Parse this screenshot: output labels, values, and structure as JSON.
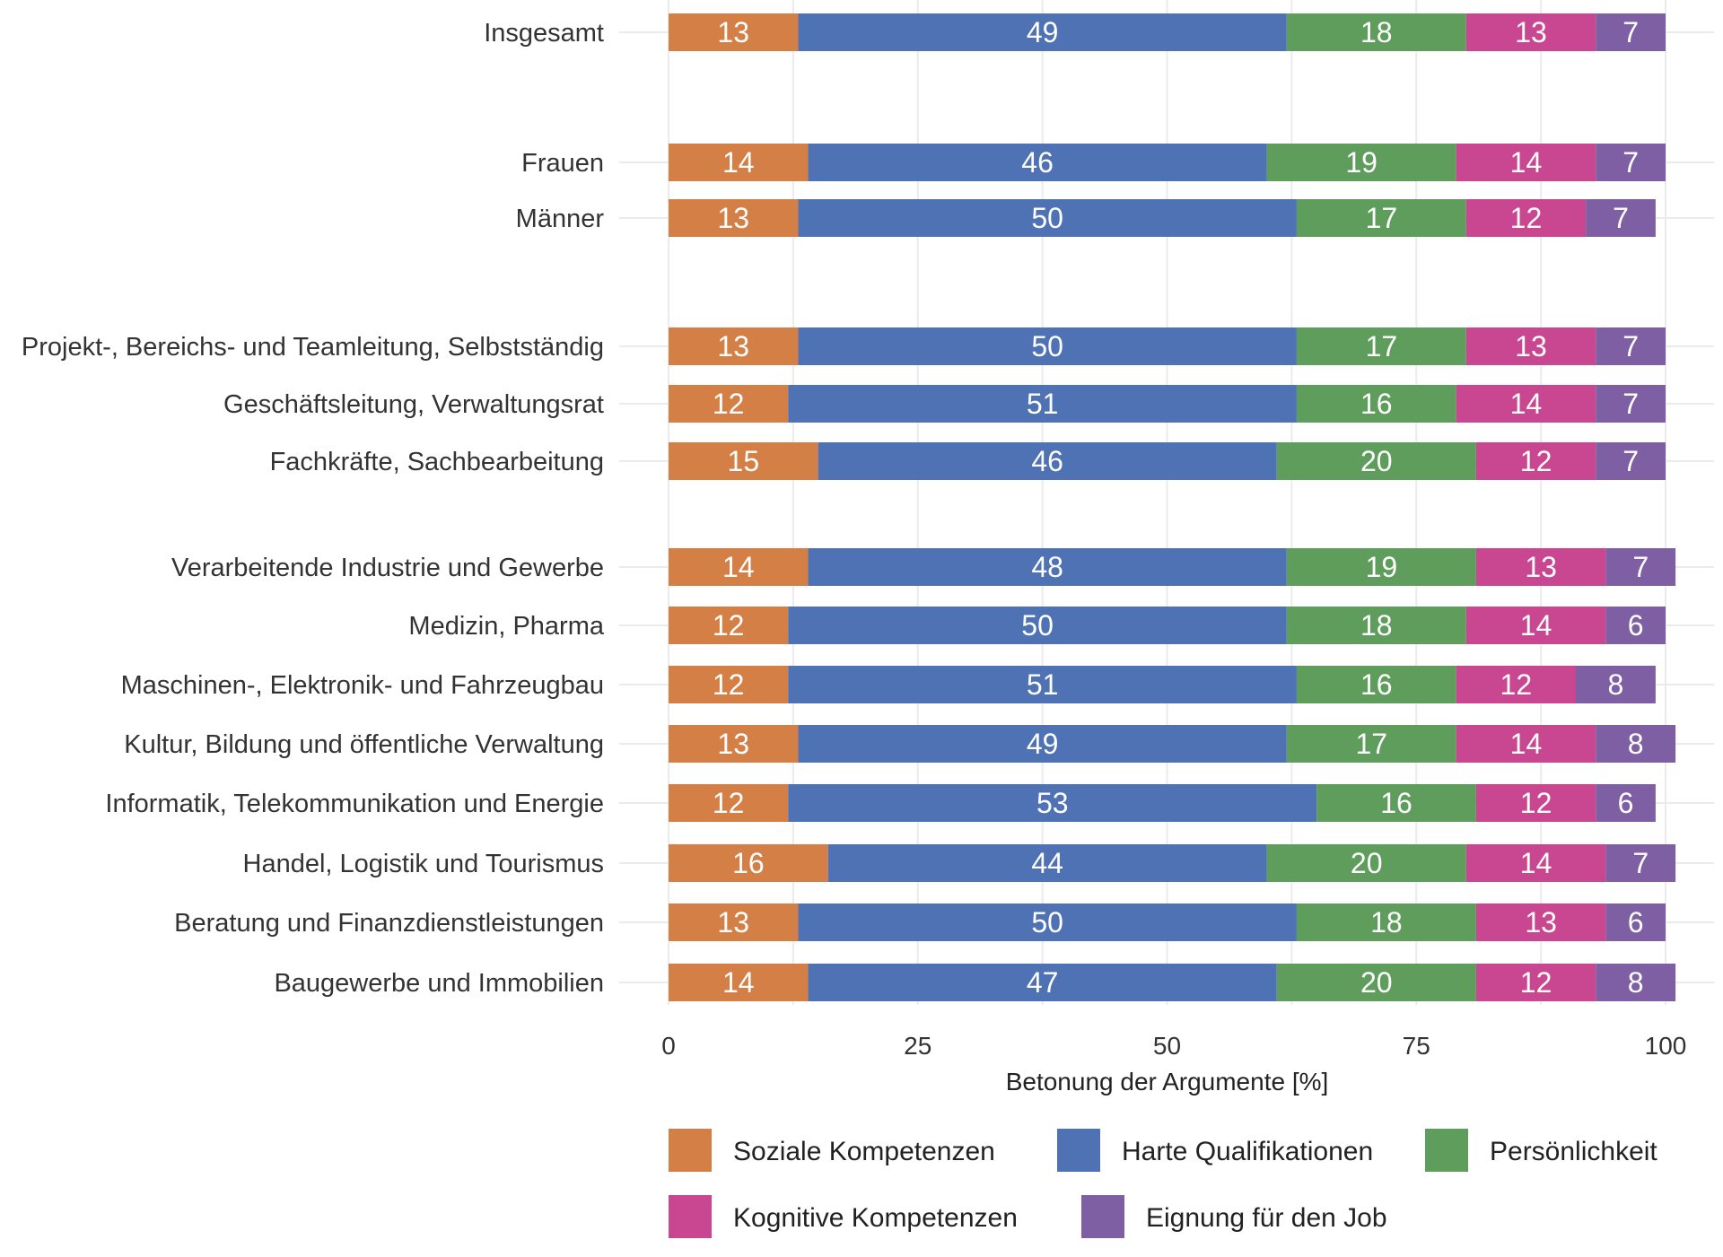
{
  "chart_data": {
    "type": "bar",
    "orientation": "horizontal",
    "stacked": true,
    "title": "",
    "xlabel": "Betonung der Argumente [%]",
    "ylabel": "",
    "xlim": [
      0,
      100
    ],
    "xticks": [
      0,
      25,
      50,
      75,
      100
    ],
    "grid": true,
    "legend_position": "bottom",
    "categories": [
      "Insgesamt",
      "Frauen",
      "Männer",
      "Projekt-, Bereichs- und Teamleitung, Selbstständig",
      "Geschäftsleitung, Verwaltungsrat",
      "Fachkräfte, Sachbearbeitung",
      "Verarbeitende Industrie und Gewerbe",
      "Medizin, Pharma",
      "Maschinen-, Elektronik- und Fahrzeugbau",
      "Kultur, Bildung und öffentliche Verwaltung",
      "Informatik, Telekommunikation und Energie",
      "Handel, Logistik und Tourismus",
      "Beratung und Finanzdienstleistungen",
      "Baugewerbe und Immobilien"
    ],
    "groups": [
      [
        0
      ],
      [
        1,
        2
      ],
      [
        3,
        4,
        5
      ],
      [
        6,
        7,
        8,
        9,
        10,
        11,
        12,
        13
      ]
    ],
    "series": [
      {
        "name": "Soziale Kompetenzen",
        "color": "#d37f45",
        "values": [
          13,
          14,
          13,
          13,
          12,
          15,
          14,
          12,
          12,
          13,
          12,
          16,
          13,
          14
        ]
      },
      {
        "name": "Harte Qualifikationen",
        "color": "#4e72b3",
        "values": [
          49,
          46,
          50,
          50,
          51,
          46,
          48,
          50,
          51,
          49,
          53,
          44,
          50,
          47
        ]
      },
      {
        "name": "Persönlichkeit",
        "color": "#5f9d5d",
        "values": [
          18,
          19,
          17,
          17,
          16,
          20,
          19,
          18,
          16,
          17,
          16,
          20,
          18,
          20
        ]
      },
      {
        "name": "Kognitive Kompetenzen",
        "color": "#c94690",
        "values": [
          13,
          14,
          12,
          13,
          14,
          12,
          13,
          14,
          12,
          14,
          12,
          14,
          13,
          12
        ]
      },
      {
        "name": "Eignung für den Job",
        "color": "#7f5fa3",
        "values": [
          7,
          7,
          7,
          7,
          7,
          7,
          7,
          6,
          8,
          8,
          6,
          7,
          6,
          8
        ]
      }
    ]
  }
}
